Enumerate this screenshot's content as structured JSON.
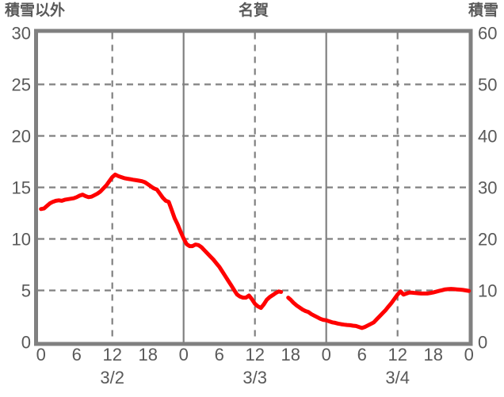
{
  "chart_data": {
    "type": "line",
    "title": "名賀",
    "left_axis": {
      "label": "積雪以外",
      "min": 0,
      "max": 30,
      "ticks": [
        0,
        5,
        10,
        15,
        20,
        25,
        30
      ]
    },
    "right_axis": {
      "label": "積雪",
      "min": 0,
      "max": 60,
      "ticks": [
        0,
        10,
        20,
        30,
        40,
        50,
        60
      ]
    },
    "x_axis": {
      "range_hours": [
        0,
        72
      ],
      "hour_ticks": [
        0,
        6,
        12,
        18,
        24,
        30,
        36,
        42,
        48,
        54,
        60,
        66,
        72
      ],
      "hour_labels": [
        "0",
        "6",
        "12",
        "18",
        "0",
        "6",
        "12",
        "18",
        "0",
        "6",
        "12",
        "18",
        "0"
      ],
      "date_labels": [
        {
          "label": "3/2",
          "hour": 12
        },
        {
          "label": "3/3",
          "hour": 36
        },
        {
          "label": "3/4",
          "hour": 60
        }
      ]
    },
    "gridlines": {
      "horizontal_left_values": [
        5,
        10,
        15,
        20,
        25
      ],
      "vertical_solid_hours": [
        24,
        48
      ],
      "vertical_dashed_hours": [
        12,
        36,
        60
      ],
      "grid_on": true,
      "legend": "none"
    },
    "colors": {
      "line": "#ff0000",
      "grid": "#808080",
      "border": "#808080",
      "text": "#595959",
      "background": "#ffffff"
    },
    "series": [
      {
        "name": "積雪以外",
        "unit_left_axis": true,
        "segments": [
          [
            [
              0,
              12.9
            ],
            [
              0.5,
              12.95
            ],
            [
              1,
              13.2
            ],
            [
              1.5,
              13.45
            ],
            [
              2,
              13.6
            ],
            [
              2.5,
              13.7
            ],
            [
              3,
              13.75
            ],
            [
              3.5,
              13.7
            ],
            [
              4,
              13.8
            ],
            [
              4.5,
              13.85
            ],
            [
              5,
              13.9
            ],
            [
              5.5,
              13.95
            ],
            [
              6,
              14.05
            ],
            [
              6.5,
              14.2
            ],
            [
              7,
              14.3
            ],
            [
              7.5,
              14.15
            ],
            [
              8,
              14.05
            ],
            [
              8.5,
              14.1
            ],
            [
              9,
              14.25
            ],
            [
              9.5,
              14.4
            ],
            [
              10,
              14.6
            ],
            [
              10.5,
              14.9
            ],
            [
              11,
              15.2
            ],
            [
              11.5,
              15.6
            ],
            [
              12,
              16.0
            ],
            [
              12.5,
              16.25
            ],
            [
              13,
              16.1
            ],
            [
              13.5,
              16.0
            ],
            [
              14,
              15.9
            ],
            [
              14.5,
              15.85
            ],
            [
              15,
              15.8
            ],
            [
              15.5,
              15.75
            ],
            [
              16,
              15.7
            ],
            [
              16.5,
              15.65
            ],
            [
              17,
              15.6
            ],
            [
              17.5,
              15.5
            ],
            [
              18,
              15.3
            ],
            [
              18.5,
              15.1
            ],
            [
              19,
              14.9
            ],
            [
              19.5,
              14.8
            ],
            [
              20,
              14.4
            ],
            [
              20.5,
              14.0
            ],
            [
              21,
              13.7
            ],
            [
              21.5,
              13.6
            ],
            [
              22,
              12.8
            ],
            [
              22.5,
              12.0
            ],
            [
              23,
              11.4
            ],
            [
              23.5,
              10.7
            ],
            [
              24,
              10.05
            ],
            [
              24.5,
              9.5
            ],
            [
              25,
              9.3
            ],
            [
              25.5,
              9.3
            ],
            [
              26,
              9.45
            ],
            [
              26.5,
              9.4
            ],
            [
              27,
              9.2
            ],
            [
              27.5,
              8.9
            ],
            [
              28,
              8.6
            ],
            [
              28.5,
              8.3
            ],
            [
              29,
              8.0
            ],
            [
              29.5,
              7.65
            ],
            [
              30,
              7.3
            ],
            [
              30.5,
              6.85
            ],
            [
              31,
              6.4
            ],
            [
              31.5,
              5.95
            ],
            [
              32,
              5.5
            ],
            [
              32.5,
              5.05
            ],
            [
              33,
              4.6
            ],
            [
              33.5,
              4.4
            ],
            [
              34,
              4.3
            ],
            [
              34.5,
              4.3
            ],
            [
              35,
              4.5
            ],
            [
              35.5,
              4.15
            ],
            [
              36,
              3.7
            ],
            [
              36.5,
              3.45
            ],
            [
              37,
              3.3
            ],
            [
              37.5,
              3.65
            ],
            [
              38,
              4.1
            ],
            [
              38.5,
              4.35
            ],
            [
              39,
              4.55
            ],
            [
              39.5,
              4.75
            ],
            [
              40,
              4.9
            ],
            [
              40.4,
              4.85
            ]
          ],
          [
            [
              41.6,
              4.3
            ],
            [
              42,
              4.1
            ],
            [
              42.5,
              3.8
            ],
            [
              43,
              3.55
            ],
            [
              43.5,
              3.35
            ],
            [
              44,
              3.15
            ],
            [
              44.5,
              3.0
            ],
            [
              45,
              2.9
            ],
            [
              45.5,
              2.7
            ],
            [
              46,
              2.55
            ],
            [
              46.5,
              2.4
            ],
            [
              47,
              2.25
            ],
            [
              47.5,
              2.15
            ],
            [
              48,
              2.1
            ],
            [
              48.5,
              2.0
            ],
            [
              49,
              1.9
            ],
            [
              49.5,
              1.85
            ],
            [
              50,
              1.78
            ],
            [
              50.5,
              1.72
            ],
            [
              51,
              1.68
            ],
            [
              51.5,
              1.65
            ],
            [
              52,
              1.62
            ],
            [
              52.5,
              1.58
            ],
            [
              53,
              1.55
            ],
            [
              53.5,
              1.45
            ],
            [
              54,
              1.35
            ],
            [
              54.5,
              1.45
            ],
            [
              55,
              1.6
            ],
            [
              55.5,
              1.75
            ],
            [
              56,
              1.9
            ],
            [
              56.5,
              2.2
            ],
            [
              57,
              2.5
            ],
            [
              57.5,
              2.8
            ],
            [
              58,
              3.1
            ],
            [
              58.5,
              3.45
            ],
            [
              59,
              3.8
            ],
            [
              59.5,
              4.2
            ],
            [
              60,
              4.6
            ],
            [
              60.5,
              4.9
            ],
            [
              61,
              4.6
            ],
            [
              61.5,
              4.7
            ],
            [
              62,
              4.8
            ],
            [
              62.5,
              4.78
            ],
            [
              63,
              4.75
            ],
            [
              63.5,
              4.72
            ],
            [
              64,
              4.7
            ],
            [
              64.5,
              4.7
            ],
            [
              65,
              4.7
            ],
            [
              65.5,
              4.75
            ],
            [
              66,
              4.8
            ],
            [
              66.5,
              4.88
            ],
            [
              67,
              4.95
            ],
            [
              67.5,
              5.02
            ],
            [
              68,
              5.1
            ],
            [
              68.5,
              5.12
            ],
            [
              69,
              5.15
            ],
            [
              69.5,
              5.12
            ],
            [
              70,
              5.1
            ],
            [
              70.5,
              5.08
            ],
            [
              71,
              5.05
            ],
            [
              71.5,
              5.0
            ],
            [
              72,
              4.95
            ]
          ]
        ]
      }
    ]
  }
}
